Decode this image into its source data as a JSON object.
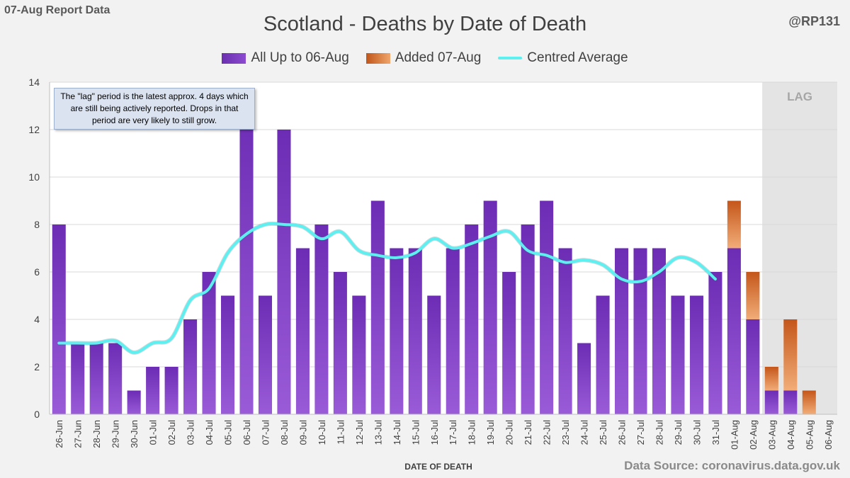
{
  "header": {
    "report_label": "07-Aug Report Data",
    "handle": "@RP131"
  },
  "footer": {
    "source": "Data Source: coronavirus.data.gov.uk"
  },
  "note": {
    "text": "The \"lag\" period is the latest approx. 4 days which are still being actively reported.  Drops in that period are very likely to still grow."
  },
  "colors": {
    "bar_base": "#7b3cc4",
    "bar_added": "#d46b22",
    "average_line": "#5ef0f0",
    "lag_region": "#e4e4e4"
  },
  "chart_data": {
    "type": "bar",
    "title": "Scotland - Deaths by Date of Death",
    "xlabel": "DATE OF DEATH",
    "ylabel": "",
    "ylim": [
      0,
      14
    ],
    "yticks": [
      0,
      2,
      4,
      6,
      8,
      10,
      12,
      14
    ],
    "grid": true,
    "legend_position": "top-center",
    "stacked": true,
    "lag_label": "LAG",
    "lag_categories": [
      "03-Aug",
      "04-Aug",
      "05-Aug",
      "06-Aug"
    ],
    "categories": [
      "26-Jun",
      "27-Jun",
      "28-Jun",
      "29-Jun",
      "30-Jun",
      "01-Jul",
      "02-Jul",
      "03-Jul",
      "04-Jul",
      "05-Jul",
      "06-Jul",
      "07-Jul",
      "08-Jul",
      "09-Jul",
      "10-Jul",
      "11-Jul",
      "12-Jul",
      "13-Jul",
      "14-Jul",
      "15-Jul",
      "16-Jul",
      "17-Jul",
      "18-Jul",
      "19-Jul",
      "20-Jul",
      "21-Jul",
      "22-Jul",
      "23-Jul",
      "24-Jul",
      "25-Jul",
      "26-Jul",
      "27-Jul",
      "28-Jul",
      "29-Jul",
      "30-Jul",
      "31-Jul",
      "01-Aug",
      "02-Aug",
      "03-Aug",
      "04-Aug",
      "05-Aug",
      "06-Aug"
    ],
    "series": [
      {
        "name": "All Up to 06-Aug",
        "kind": "bar",
        "values": [
          8,
          3,
          3,
          3,
          1,
          2,
          2,
          4,
          6,
          5,
          13,
          5,
          12,
          7,
          8,
          6,
          5,
          9,
          7,
          7,
          5,
          7,
          8,
          9,
          6,
          8,
          9,
          7,
          3,
          5,
          7,
          7,
          7,
          5,
          5,
          6,
          7,
          4,
          1,
          1,
          0,
          0
        ]
      },
      {
        "name": "Added 07-Aug",
        "kind": "bar",
        "values": [
          0,
          0,
          0,
          0,
          0,
          0,
          0,
          0,
          0,
          0,
          0,
          0,
          0,
          0,
          0,
          0,
          0,
          0,
          0,
          0,
          0,
          0,
          0,
          0,
          0,
          0,
          0,
          0,
          0,
          0,
          0,
          0,
          0,
          0,
          0,
          0,
          2,
          2,
          1,
          3,
          1,
          0
        ]
      },
      {
        "name": "Centred Average",
        "kind": "line",
        "values": [
          3.0,
          3.0,
          3.0,
          3.1,
          2.6,
          3.0,
          3.2,
          4.8,
          5.3,
          6.8,
          7.6,
          8.0,
          8.0,
          7.9,
          7.4,
          7.7,
          6.9,
          6.7,
          6.6,
          6.8,
          7.4,
          7.0,
          7.2,
          7.5,
          7.7,
          6.9,
          6.7,
          6.4,
          6.5,
          6.3,
          5.7,
          5.6,
          6.0,
          6.6,
          6.4,
          5.7,
          null,
          null,
          null,
          null,
          null,
          null
        ]
      }
    ]
  }
}
